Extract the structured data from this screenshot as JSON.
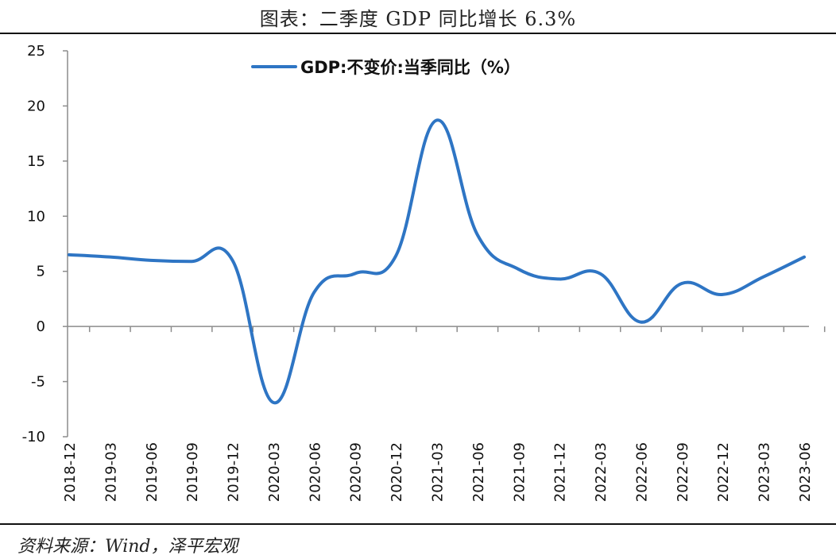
{
  "caption": "图表：二季度 GDP 同比增长 6.3%",
  "source": "资料来源：Wind，泽平宏观",
  "chart_data": {
    "type": "line",
    "title": "图表：二季度 GDP 同比增长 6.3%",
    "xlabel": "",
    "ylabel": "",
    "ylim": [
      -10,
      25
    ],
    "yticks": [
      25,
      20,
      15,
      10,
      5,
      0,
      -5,
      -10
    ],
    "grid": false,
    "legend_position": "top-center",
    "line_color": "#2E75C4",
    "categories": [
      "2018-12",
      "2019-03",
      "2019-06",
      "2019-09",
      "2019-12",
      "2020-03",
      "2020-06",
      "2020-09",
      "2020-12",
      "2021-03",
      "2021-06",
      "2021-09",
      "2021-12",
      "2022-03",
      "2022-06",
      "2022-09",
      "2022-12",
      "2023-03",
      "2023-06"
    ],
    "series": [
      {
        "name": "GDP:不变价:当季同比（%）",
        "values": [
          6.5,
          6.3,
          6.0,
          5.9,
          6.0,
          -6.9,
          3.1,
          4.8,
          6.4,
          18.7,
          8.3,
          5.2,
          4.3,
          4.8,
          0.4,
          3.9,
          2.9,
          4.5,
          6.3
        ]
      }
    ]
  }
}
